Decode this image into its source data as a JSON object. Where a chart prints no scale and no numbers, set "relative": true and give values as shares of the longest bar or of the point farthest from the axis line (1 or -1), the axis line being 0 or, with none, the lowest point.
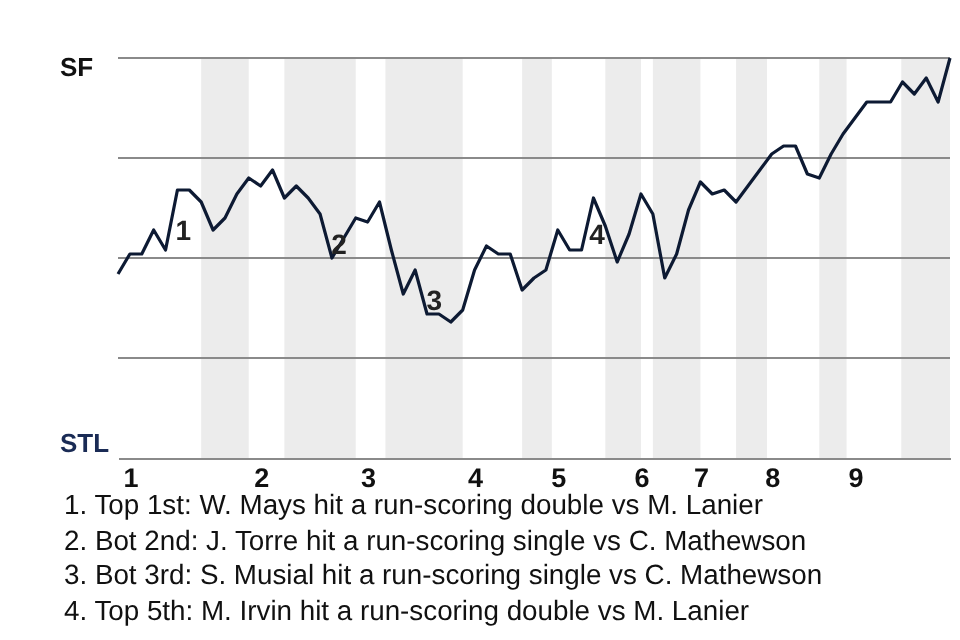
{
  "chart_data": {
    "type": "line",
    "relative": true,
    "color": "#0d1a33",
    "grid": "y",
    "categories": [
      null,
      "1",
      null,
      null,
      null,
      null,
      null,
      null,
      null,
      null,
      null,
      null,
      "2",
      null,
      null,
      null,
      null,
      null,
      null,
      null,
      null,
      "3",
      null,
      null,
      null,
      null,
      null,
      null,
      null,
      null,
      "4",
      null,
      null,
      null,
      null,
      null,
      null,
      "5",
      null,
      null,
      null,
      null,
      null,
      null,
      "6",
      null,
      null,
      null,
      null,
      "7",
      null,
      null,
      null,
      null,
      null,
      "8",
      null,
      null,
      null,
      null,
      null,
      null,
      "9",
      null,
      null,
      null,
      null,
      null,
      null,
      null,
      null
    ],
    "values": [
      0.46,
      0.51,
      0.51,
      0.57,
      0.52,
      0.67,
      0.67,
      0.64,
      0.57,
      0.6,
      0.66,
      0.7,
      0.68,
      0.72,
      0.65,
      0.68,
      0.65,
      0.61,
      0.5,
      0.55,
      0.6,
      0.59,
      0.64,
      0.52,
      0.41,
      0.47,
      0.36,
      0.36,
      0.34,
      0.37,
      0.47,
      0.53,
      0.51,
      0.51,
      0.42,
      0.45,
      0.47,
      0.57,
      0.52,
      0.52,
      0.65,
      0.58,
      0.49,
      0.56,
      0.66,
      0.61,
      0.45,
      0.51,
      0.62,
      0.69,
      0.66,
      0.67,
      0.64,
      0.68,
      0.72,
      0.76,
      0.78,
      0.78,
      0.71,
      0.7,
      0.76,
      0.81,
      0.85,
      0.89,
      0.89,
      0.89,
      0.94,
      0.91,
      0.95,
      0.89,
      1.0
    ],
    "annotations": [
      "SF",
      "STL",
      "1",
      "2",
      "3",
      "4",
      "1. Top 1st: W. Mays hit a run-scoring double vs M. Lanier",
      "2. Bot 2nd: J. Torre hit a run-scoring single vs C. Mathewson",
      "3. Bot 3rd: S. Musial hit a run-scoring single vs C. Mathewson",
      "4. Top 5th: M. Irvin hit a run-scoring double vs M. Lanier"
    ]
  }
}
